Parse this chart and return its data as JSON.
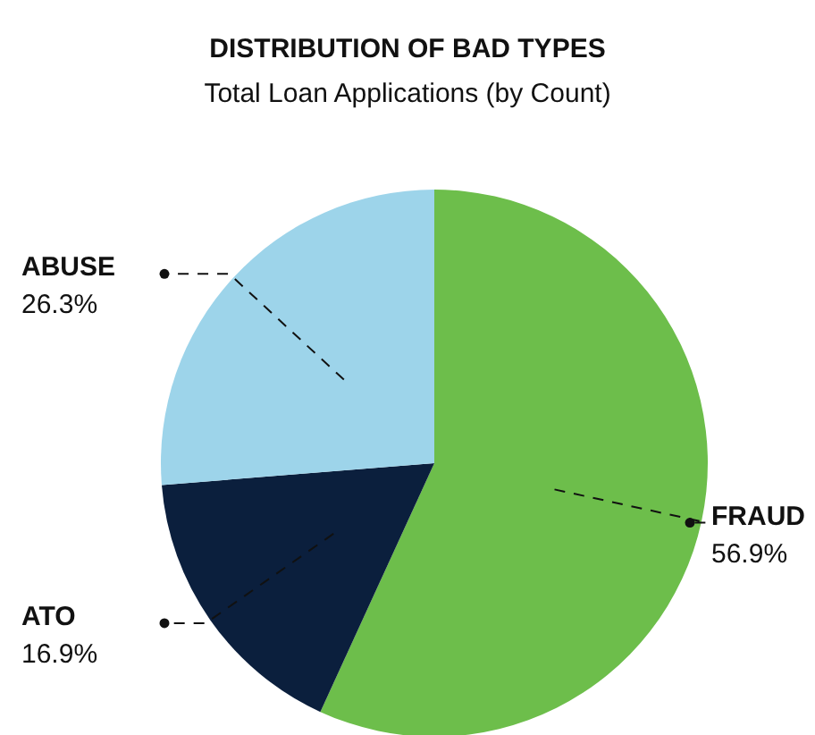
{
  "chart_data": {
    "type": "pie",
    "title": "DISTRIBUTION OF BAD TYPES",
    "subtitle": "Total Loan Applications (by Count)",
    "categories": [
      "FRAUD",
      "ATO",
      "ABUSE"
    ],
    "values": [
      56.9,
      16.9,
      26.3
    ],
    "colors": [
      "#6dbe4b",
      "#0b1f3d",
      "#9dd4ea"
    ],
    "value_labels": [
      "56.9%",
      "16.9%",
      "26.3%"
    ],
    "legend": false
  }
}
